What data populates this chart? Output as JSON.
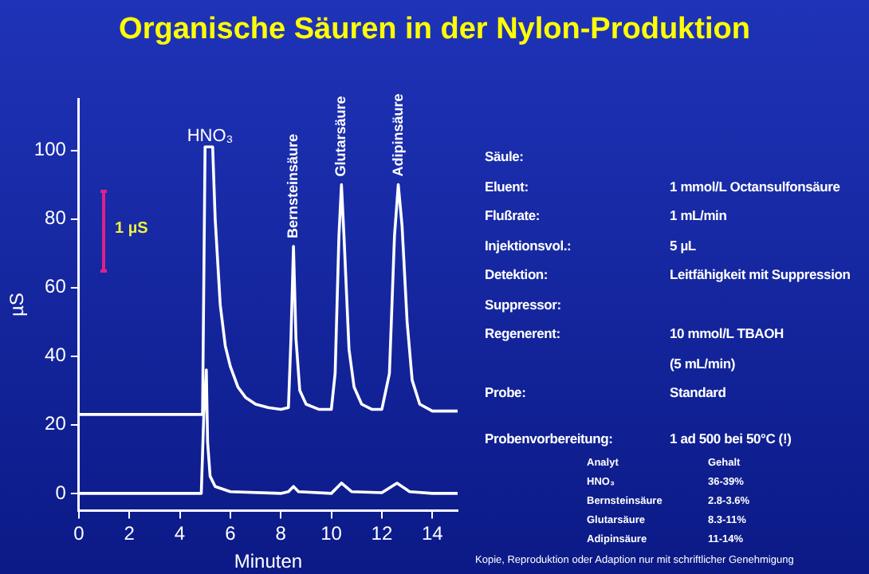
{
  "chart_data": {
    "type": "line",
    "title": "Organische Säuren in der Nylon-Produktion",
    "xlabel": "Minuten",
    "ylabel": "µS",
    "xlim": [
      0,
      15
    ],
    "xticks": [
      0,
      2,
      4,
      6,
      8,
      10,
      12,
      14
    ],
    "ylim": [
      -5,
      115
    ],
    "yticks": [
      0,
      20,
      40,
      60,
      80,
      100
    ],
    "grid": false,
    "legend": false,
    "marker": "none",
    "line_style": "solid",
    "series": [
      {
        "color": "#ffffff",
        "x": [
          0,
          4.9,
          4.95,
          5.0,
          5.1,
          5.2,
          5.3,
          5.4,
          5.6,
          5.8,
          6,
          6.3,
          6.6,
          7,
          7.5,
          8,
          8.3,
          8.4,
          8.5,
          8.6,
          8.75,
          9,
          9.5,
          10,
          10.15,
          10.3,
          10.4,
          10.5,
          10.7,
          10.9,
          11.2,
          11.6,
          12,
          12.3,
          12.5,
          12.65,
          12.8,
          13.0,
          13.2,
          13.5,
          14,
          15
        ],
        "values": [
          23,
          23,
          23,
          101,
          101,
          101,
          101,
          80,
          55,
          43,
          37,
          31,
          28,
          26,
          25,
          24.5,
          25,
          45,
          72,
          45,
          30,
          26,
          24.5,
          24.5,
          35,
          75,
          90,
          75,
          42,
          31,
          26,
          24.5,
          24.5,
          35,
          75,
          90,
          78,
          50,
          33,
          26,
          24,
          24
        ]
      },
      {
        "color": "#ffffff",
        "x": [
          0,
          4.85,
          4.95,
          5.05,
          5.1,
          5.2,
          5.4,
          6,
          8,
          8.3,
          8.5,
          8.7,
          10,
          10.4,
          10.8,
          12,
          12.6,
          13.1,
          14,
          15
        ],
        "values": [
          0,
          0,
          23,
          36,
          15,
          5,
          2,
          0.5,
          0,
          0.5,
          2,
          0.5,
          0,
          3,
          0.5,
          0.2,
          3,
          0.5,
          0,
          0
        ]
      }
    ],
    "annotations": [
      {
        "text": "HNO₃",
        "x": 5.2,
        "y": 101
      },
      {
        "text": "Bernsteinsäure",
        "x": 8.5,
        "y": 72
      },
      {
        "text": "Glutarsäure",
        "x": 10.4,
        "y": 90
      },
      {
        "text": "Adipinsäure",
        "x": 12.65,
        "y": 90
      },
      "1 µS",
      "Säule:\t",
      "Eluent:\t1 mmol/L Octansulfonsäure",
      "Flußrate:\t1 mL/min",
      "Injektionsvol.:\t5 µL",
      "Detektion:\tLeitfähigkeit mit Suppression",
      "Suppressor:\t",
      "Regenerent:\t10 mmol/L TBAOH",
      "\t(5 mL/min)",
      "Probe:\tStandard",
      "Probenvorbereitung:\t1 ad 500 bei 50°C (!)",
      "Analyt\tGehalt",
      "HNO₃\t36-39%",
      "Bernsteinsäure\t2.8-3.6%",
      "Glutarsäure\t8.3-11%",
      "Adipinsäure\t11-14%",
      "Kopie, Reproduktion oder Adaption nur mit schriftlicher Genehmigung"
    ]
  }
}
